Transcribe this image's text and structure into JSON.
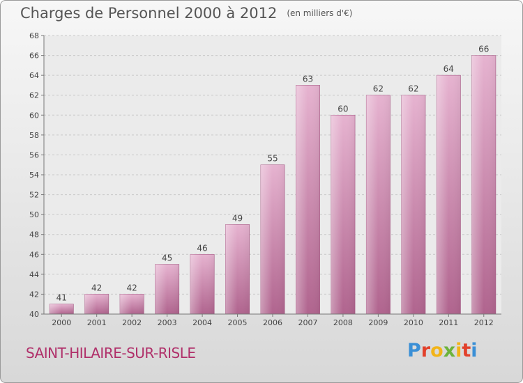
{
  "title": "Charges de Personnel 2000 à 2012",
  "title_unit": "(en milliers d'€)",
  "commune": "SAINT-HILAIRE-SUR-RISLE",
  "logo": [
    "P",
    "r",
    "o",
    "x",
    "i",
    "t",
    "i"
  ],
  "colors": {
    "bar": "#c97aa6",
    "bar_light": "#e6b3d0",
    "commune": "#b0306a"
  },
  "chart_data": {
    "type": "bar",
    "categories": [
      "2000",
      "2001",
      "2002",
      "2003",
      "2004",
      "2005",
      "2006",
      "2007",
      "2008",
      "2009",
      "2010",
      "2011",
      "2012"
    ],
    "values": [
      41,
      42,
      42,
      45,
      46,
      49,
      55,
      63,
      60,
      62,
      62,
      64,
      66
    ],
    "data_labels": [
      "41",
      "42",
      "42",
      "45",
      "46",
      "49",
      "55",
      "63",
      "60",
      "62",
      "62",
      "64",
      "66"
    ],
    "title": "Charges de Personnel 2000 à 2012",
    "xlabel": "",
    "ylabel": "",
    "ylim": [
      40,
      68
    ],
    "yticks": [
      40,
      42,
      44,
      46,
      48,
      50,
      52,
      54,
      56,
      58,
      60,
      62,
      64,
      66,
      68
    ],
    "grid": true,
    "legend": "none"
  }
}
